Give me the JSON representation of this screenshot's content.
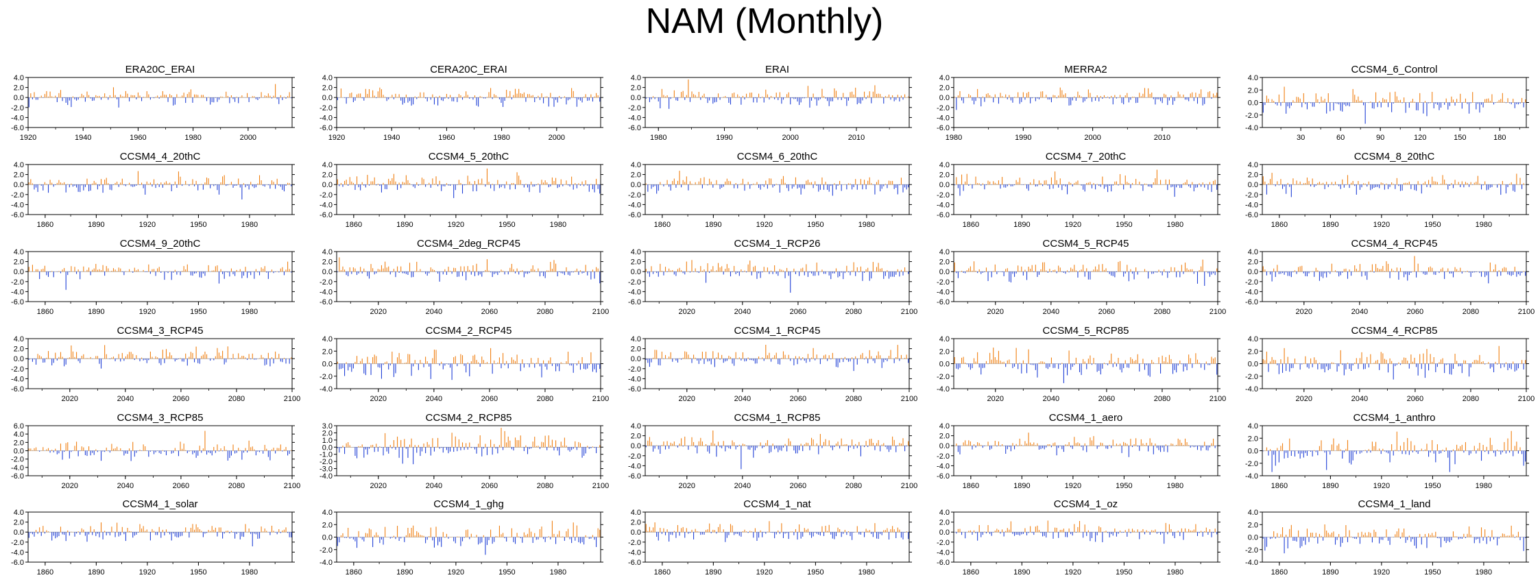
{
  "title": "NAM (Monthly)",
  "colors": {
    "positive": "#f07f10",
    "negative": "#1f3fd6",
    "axis": "#000000",
    "zero_line": "#888888"
  },
  "chart_data": [
    {
      "type": "bar",
      "title": "ERA20C_ERAI",
      "x": [
        1920,
        2016
      ],
      "ylim": [
        -6,
        4
      ],
      "yticks": [
        4,
        2,
        0,
        -2,
        -4,
        -6
      ],
      "ytick_labels": [
        "4.0",
        "2.0",
        "0.0",
        "-2.0",
        "-4.0",
        "-6.0"
      ],
      "xticks": [
        1920,
        1940,
        1960,
        1980,
        2000
      ],
      "xtick_labels": [
        "1920",
        "1940",
        "1960",
        "1980",
        "2000"
      ],
      "amp": 1.1,
      "seed": 11
    },
    {
      "type": "bar",
      "title": "CERA20C_ERAI",
      "x": [
        1920,
        2016
      ],
      "ylim": [
        -6,
        4
      ],
      "yticks": [
        4,
        2,
        0,
        -2,
        -4,
        -6
      ],
      "ytick_labels": [
        "4.0",
        "2.0",
        "0.0",
        "-2.0",
        "-4.0",
        "-6.0"
      ],
      "xticks": [
        1920,
        1940,
        1960,
        1980,
        2000
      ],
      "xtick_labels": [
        "1920",
        "1940",
        "1960",
        "1980",
        "2000"
      ],
      "amp": 1.1,
      "seed": 12
    },
    {
      "type": "bar",
      "title": "ERAI",
      "x": [
        1978,
        2018
      ],
      "ylim": [
        -6,
        4
      ],
      "yticks": [
        4,
        2,
        0,
        -2,
        -4,
        -6
      ],
      "ytick_labels": [
        "4.0",
        "2.0",
        "0.0",
        "-2.0",
        "-4.0",
        "-6.0"
      ],
      "xticks": [
        1980,
        1990,
        2000,
        2010
      ],
      "xtick_labels": [
        "1980",
        "1990",
        "2000",
        "2010"
      ],
      "amp": 1.2,
      "seed": 13
    },
    {
      "type": "bar",
      "title": "MERRA2",
      "x": [
        1980,
        2018
      ],
      "ylim": [
        -6,
        4
      ],
      "yticks": [
        4,
        2,
        0,
        -2,
        -4,
        -6
      ],
      "ytick_labels": [
        "4.0",
        "2.0",
        "0.0",
        "-2.0",
        "-4.0",
        "-6.0"
      ],
      "xticks": [
        1980,
        1990,
        2000,
        2010
      ],
      "xtick_labels": [
        "1980",
        "1990",
        "2000",
        "2010"
      ],
      "amp": 1.2,
      "seed": 14
    },
    {
      "type": "bar",
      "title": "CCSM4_6_Control",
      "x": [
        1,
        200
      ],
      "ylim": [
        -4,
        4
      ],
      "yticks": [
        4,
        2,
        0,
        -2,
        -4
      ],
      "ytick_labels": [
        "4.0",
        "2.0",
        "0.0",
        "-2.0",
        "-4.0"
      ],
      "xticks": [
        30,
        60,
        90,
        120,
        150,
        180
      ],
      "xtick_labels": [
        "30",
        "60",
        "90",
        "120",
        "150",
        "180"
      ],
      "amp": 1.3,
      "seed": 15
    },
    {
      "type": "bar",
      "title": "CCSM4_4_20thC",
      "x": [
        1850,
        2005
      ],
      "ylim": [
        -6,
        4
      ],
      "yticks": [
        4,
        2,
        0,
        -2,
        -4,
        -6
      ],
      "ytick_labels": [
        "4.0",
        "2.0",
        "0.0",
        "-2.0",
        "-4.0",
        "-6.0"
      ],
      "xticks": [
        1860,
        1890,
        1920,
        1950,
        1980
      ],
      "xtick_labels": [
        "1860",
        "1890",
        "1920",
        "1950",
        "1980"
      ],
      "amp": 1.2,
      "seed": 21
    },
    {
      "type": "bar",
      "title": "CCSM4_5_20thC",
      "x": [
        1850,
        2005
      ],
      "ylim": [
        -6,
        4
      ],
      "yticks": [
        4,
        2,
        0,
        -2,
        -4,
        -6
      ],
      "ytick_labels": [
        "4.0",
        "2.0",
        "0.0",
        "-2.0",
        "-4.0",
        "-6.0"
      ],
      "xticks": [
        1860,
        1890,
        1920,
        1950,
        1980
      ],
      "xtick_labels": [
        "1860",
        "1890",
        "1920",
        "1950",
        "1980"
      ],
      "amp": 1.2,
      "seed": 22
    },
    {
      "type": "bar",
      "title": "CCSM4_6_20thC",
      "x": [
        1850,
        2005
      ],
      "ylim": [
        -6,
        4
      ],
      "yticks": [
        4,
        2,
        0,
        -2,
        -4,
        -6
      ],
      "ytick_labels": [
        "4.0",
        "2.0",
        "0.0",
        "-2.0",
        "-4.0",
        "-6.0"
      ],
      "xticks": [
        1860,
        1890,
        1920,
        1950,
        1980
      ],
      "xtick_labels": [
        "1860",
        "1890",
        "1920",
        "1950",
        "1980"
      ],
      "amp": 1.2,
      "seed": 23
    },
    {
      "type": "bar",
      "title": "CCSM4_7_20thC",
      "x": [
        1850,
        2005
      ],
      "ylim": [
        -6,
        4
      ],
      "yticks": [
        4,
        2,
        0,
        -2,
        -4,
        -6
      ],
      "ytick_labels": [
        "4.0",
        "2.0",
        "0.0",
        "-2.0",
        "-4.0",
        "-6.0"
      ],
      "xticks": [
        1860,
        1890,
        1920,
        1950,
        1980
      ],
      "xtick_labels": [
        "1860",
        "1890",
        "1920",
        "1950",
        "1980"
      ],
      "amp": 1.2,
      "seed": 24
    },
    {
      "type": "bar",
      "title": "CCSM4_8_20thC",
      "x": [
        1850,
        2005
      ],
      "ylim": [
        -6,
        4
      ],
      "yticks": [
        4,
        2,
        0,
        -2,
        -4,
        -6
      ],
      "ytick_labels": [
        "4.0",
        "2.0",
        "0.0",
        "-2.0",
        "-4.0",
        "-6.0"
      ],
      "xticks": [
        1860,
        1890,
        1920,
        1950,
        1980
      ],
      "xtick_labels": [
        "1860",
        "1890",
        "1920",
        "1950",
        "1980"
      ],
      "amp": 1.2,
      "seed": 25
    },
    {
      "type": "bar",
      "title": "CCSM4_9_20thC",
      "x": [
        1850,
        2005
      ],
      "ylim": [
        -6,
        4
      ],
      "yticks": [
        4,
        2,
        0,
        -2,
        -4,
        -6
      ],
      "ytick_labels": [
        "4.0",
        "2.0",
        "0.0",
        "-2.0",
        "-4.0",
        "-6.0"
      ],
      "xticks": [
        1860,
        1890,
        1920,
        1950,
        1980
      ],
      "xtick_labels": [
        "1860",
        "1890",
        "1920",
        "1950",
        "1980"
      ],
      "amp": 1.2,
      "seed": 31
    },
    {
      "type": "bar",
      "title": "CCSM4_2deg_RCP45",
      "x": [
        2005,
        2100
      ],
      "ylim": [
        -6,
        4
      ],
      "yticks": [
        4,
        2,
        0,
        -2,
        -4,
        -6
      ],
      "ytick_labels": [
        "4.0",
        "2.0",
        "0.0",
        "-2.0",
        "-4.0",
        "-6.0"
      ],
      "xticks": [
        2020,
        2040,
        2060,
        2080,
        2100
      ],
      "xtick_labels": [
        "2020",
        "2040",
        "2060",
        "2080",
        "2100"
      ],
      "amp": 1.2,
      "seed": 32
    },
    {
      "type": "bar",
      "title": "CCSM4_1_RCP26",
      "x": [
        2005,
        2100
      ],
      "ylim": [
        -6,
        4
      ],
      "yticks": [
        4,
        2,
        0,
        -2,
        -4,
        -6
      ],
      "ytick_labels": [
        "4.0",
        "2.0",
        "0.0",
        "-2.0",
        "-4.0",
        "-6.0"
      ],
      "xticks": [
        2020,
        2040,
        2060,
        2080,
        2100
      ],
      "xtick_labels": [
        "2020",
        "2040",
        "2060",
        "2080",
        "2100"
      ],
      "amp": 1.4,
      "seed": 33
    },
    {
      "type": "bar",
      "title": "CCSM4_5_RCP45",
      "x": [
        2005,
        2100
      ],
      "ylim": [
        -6,
        4
      ],
      "yticks": [
        4,
        2,
        0,
        -2,
        -4,
        -6
      ],
      "ytick_labels": [
        "4.0",
        "2.0",
        "0.0",
        "-2.0",
        "-4.0",
        "-6.0"
      ],
      "xticks": [
        2020,
        2040,
        2060,
        2080,
        2100
      ],
      "xtick_labels": [
        "2020",
        "2040",
        "2060",
        "2080",
        "2100"
      ],
      "amp": 1.2,
      "seed": 34
    },
    {
      "type": "bar",
      "title": "CCSM4_4_RCP45",
      "x": [
        2005,
        2100
      ],
      "ylim": [
        -6,
        4
      ],
      "yticks": [
        4,
        2,
        0,
        -2,
        -4,
        -6
      ],
      "ytick_labels": [
        "4.0",
        "2.0",
        "0.0",
        "-2.0",
        "-4.0",
        "-6.0"
      ],
      "xticks": [
        2020,
        2040,
        2060,
        2080,
        2100
      ],
      "xtick_labels": [
        "2020",
        "2040",
        "2060",
        "2080",
        "2100"
      ],
      "amp": 1.2,
      "seed": 35
    },
    {
      "type": "bar",
      "title": "CCSM4_3_RCP45",
      "x": [
        2005,
        2100
      ],
      "ylim": [
        -6,
        4
      ],
      "yticks": [
        4,
        2,
        0,
        -2,
        -4,
        -6
      ],
      "ytick_labels": [
        "4.0",
        "2.0",
        "0.0",
        "-2.0",
        "-4.0",
        "-6.0"
      ],
      "xticks": [
        2020,
        2040,
        2060,
        2080,
        2100
      ],
      "xtick_labels": [
        "2020",
        "2040",
        "2060",
        "2080",
        "2100"
      ],
      "amp": 1.3,
      "seed": 41
    },
    {
      "type": "bar",
      "title": "CCSM4_2_RCP45",
      "x": [
        2005,
        2100
      ],
      "ylim": [
        -4,
        4
      ],
      "yticks": [
        4,
        2,
        0,
        -2,
        -4
      ],
      "ytick_labels": [
        "4.0",
        "2.0",
        "0.0",
        "-2.0",
        "-4.0"
      ],
      "xticks": [
        2020,
        2040,
        2060,
        2080,
        2100
      ],
      "xtick_labels": [
        "2020",
        "2040",
        "2060",
        "2080",
        "2100"
      ],
      "amp": 1.4,
      "seed": 42
    },
    {
      "type": "bar",
      "title": "CCSM4_1_RCP45",
      "x": [
        2005,
        2100
      ],
      "ylim": [
        -6,
        4
      ],
      "yticks": [
        4,
        2,
        0,
        -2,
        -4,
        -6
      ],
      "ytick_labels": [
        "4.0",
        "2.0",
        "0.0",
        "-2.0",
        "-4.0",
        "-6.0"
      ],
      "xticks": [
        2020,
        2040,
        2060,
        2080,
        2100
      ],
      "xtick_labels": [
        "2020",
        "2040",
        "2060",
        "2080",
        "2100"
      ],
      "amp": 1.3,
      "seed": 43
    },
    {
      "type": "bar",
      "title": "CCSM4_5_RCP85",
      "x": [
        2005,
        2100
      ],
      "ylim": [
        -4,
        4
      ],
      "yticks": [
        4,
        2,
        0,
        -2,
        -4
      ],
      "ytick_labels": [
        "4.0",
        "2.0",
        "0.0",
        "-2.0",
        "-4.0"
      ],
      "xticks": [
        2020,
        2040,
        2060,
        2080,
        2100
      ],
      "xtick_labels": [
        "2020",
        "2040",
        "2060",
        "2080",
        "2100"
      ],
      "amp": 1.4,
      "seed": 44
    },
    {
      "type": "bar",
      "title": "CCSM4_4_RCP85",
      "x": [
        2005,
        2100
      ],
      "ylim": [
        -4,
        4
      ],
      "yticks": [
        4,
        2,
        0,
        -2,
        -4
      ],
      "ytick_labels": [
        "4.0",
        "2.0",
        "0.0",
        "-2.0",
        "-4.0"
      ],
      "xticks": [
        2020,
        2040,
        2060,
        2080,
        2100
      ],
      "xtick_labels": [
        "2020",
        "2040",
        "2060",
        "2080",
        "2100"
      ],
      "amp": 1.4,
      "seed": 45
    },
    {
      "type": "bar",
      "title": "CCSM4_3_RCP85",
      "x": [
        2005,
        2100
      ],
      "ylim": [
        -6,
        6
      ],
      "yticks": [
        6,
        4,
        2,
        0,
        -2,
        -4,
        -6
      ],
      "ytick_labels": [
        "6.0",
        "4.0",
        "2.0",
        "0.0",
        "-2.0",
        "-4.0",
        "-6.0"
      ],
      "xticks": [
        2020,
        2040,
        2060,
        2080,
        2100
      ],
      "xtick_labels": [
        "2020",
        "2040",
        "2060",
        "2080",
        "2100"
      ],
      "amp": 1.3,
      "seed": 51
    },
    {
      "type": "bar",
      "title": "CCSM4_2_RCP85",
      "x": [
        2005,
        2100
      ],
      "ylim": [
        -4,
        3
      ],
      "yticks": [
        3,
        2,
        1,
        0,
        -1,
        -2,
        -3,
        -4
      ],
      "ytick_labels": [
        "3.0",
        "2.0",
        "1.0",
        "0.0",
        "-1.0",
        "-2.0",
        "-3.0",
        "-4.0"
      ],
      "xticks": [
        2020,
        2040,
        2060,
        2080,
        2100
      ],
      "xtick_labels": [
        "2020",
        "2040",
        "2060",
        "2080",
        "2100"
      ],
      "amp": 1.2,
      "seed": 52
    },
    {
      "type": "bar",
      "title": "CCSM4_1_RCP85",
      "x": [
        2005,
        2100
      ],
      "ylim": [
        -6,
        4
      ],
      "yticks": [
        4,
        2,
        0,
        -2,
        -4,
        -6
      ],
      "ytick_labels": [
        "4.0",
        "2.0",
        "0.0",
        "-2.0",
        "-4.0",
        "-6.0"
      ],
      "xticks": [
        2020,
        2040,
        2060,
        2080,
        2100
      ],
      "xtick_labels": [
        "2020",
        "2040",
        "2060",
        "2080",
        "2100"
      ],
      "amp": 1.3,
      "seed": 53
    },
    {
      "type": "bar",
      "title": "CCSM4_1_aero",
      "x": [
        1850,
        2005
      ],
      "ylim": [
        -6,
        4
      ],
      "yticks": [
        4,
        2,
        0,
        -2,
        -4,
        -6
      ],
      "ytick_labels": [
        "4.0",
        "2.0",
        "0.0",
        "-2.0",
        "-4.0",
        "-6.0"
      ],
      "xticks": [
        1860,
        1890,
        1920,
        1950,
        1980
      ],
      "xtick_labels": [
        "1860",
        "1890",
        "1920",
        "1950",
        "1980"
      ],
      "amp": 1.2,
      "seed": 54
    },
    {
      "type": "bar",
      "title": "CCSM4_1_anthro",
      "x": [
        1850,
        2005
      ],
      "ylim": [
        -4,
        4
      ],
      "yticks": [
        4,
        2,
        0,
        -2,
        -4
      ],
      "ytick_labels": [
        "4.0",
        "2.0",
        "0.0",
        "-2.0",
        "-4.0"
      ],
      "xticks": [
        1860,
        1890,
        1920,
        1950,
        1980
      ],
      "xtick_labels": [
        "1860",
        "1890",
        "1920",
        "1950",
        "1980"
      ],
      "amp": 1.3,
      "seed": 55
    },
    {
      "type": "bar",
      "title": "CCSM4_1_solar",
      "x": [
        1850,
        2005
      ],
      "ylim": [
        -6,
        4
      ],
      "yticks": [
        4,
        2,
        0,
        -2,
        -4,
        -6
      ],
      "ytick_labels": [
        "4.0",
        "2.0",
        "0.0",
        "-2.0",
        "-4.0",
        "-6.0"
      ],
      "xticks": [
        1860,
        1890,
        1920,
        1950,
        1980
      ],
      "xtick_labels": [
        "1860",
        "1890",
        "1920",
        "1950",
        "1980"
      ],
      "amp": 1.2,
      "seed": 61
    },
    {
      "type": "bar",
      "title": "CCSM4_1_ghg",
      "x": [
        1850,
        2005
      ],
      "ylim": [
        -4,
        4
      ],
      "yticks": [
        4,
        2,
        0,
        -2,
        -4
      ],
      "ytick_labels": [
        "4.0",
        "2.0",
        "0.0",
        "-2.0",
        "-4.0"
      ],
      "xticks": [
        1860,
        1890,
        1920,
        1950,
        1980
      ],
      "xtick_labels": [
        "1860",
        "1890",
        "1920",
        "1950",
        "1980"
      ],
      "amp": 1.3,
      "seed": 62
    },
    {
      "type": "bar",
      "title": "CCSM4_1_nat",
      "x": [
        1850,
        2005
      ],
      "ylim": [
        -6,
        4
      ],
      "yticks": [
        4,
        2,
        0,
        -2,
        -4,
        -6
      ],
      "ytick_labels": [
        "4.0",
        "2.0",
        "0.0",
        "-2.0",
        "-4.0",
        "-6.0"
      ],
      "xticks": [
        1860,
        1890,
        1920,
        1950,
        1980
      ],
      "xtick_labels": [
        "1860",
        "1890",
        "1920",
        "1950",
        "1980"
      ],
      "amp": 1.2,
      "seed": 63
    },
    {
      "type": "bar",
      "title": "CCSM4_1_oz",
      "x": [
        1850,
        2005
      ],
      "ylim": [
        -6,
        4
      ],
      "yticks": [
        4,
        2,
        0,
        -2,
        -4,
        -6
      ],
      "ytick_labels": [
        "4.0",
        "2.0",
        "0.0",
        "-2.0",
        "-4.0",
        "-6.0"
      ],
      "xticks": [
        1860,
        1890,
        1920,
        1950,
        1980
      ],
      "xtick_labels": [
        "1860",
        "1890",
        "1920",
        "1950",
        "1980"
      ],
      "amp": 1.2,
      "seed": 64
    },
    {
      "type": "bar",
      "title": "CCSM4_1_land",
      "x": [
        1850,
        2005
      ],
      "ylim": [
        -4,
        4
      ],
      "yticks": [
        4,
        2,
        0,
        -2,
        -4
      ],
      "ytick_labels": [
        "4.0",
        "2.0",
        "0.0",
        "-2.0",
        "-4.0"
      ],
      "xticks": [
        1860,
        1890,
        1920,
        1950,
        1980
      ],
      "xtick_labels": [
        "1860",
        "1890",
        "1920",
        "1950",
        "1980"
      ],
      "amp": 1.3,
      "seed": 65
    }
  ]
}
